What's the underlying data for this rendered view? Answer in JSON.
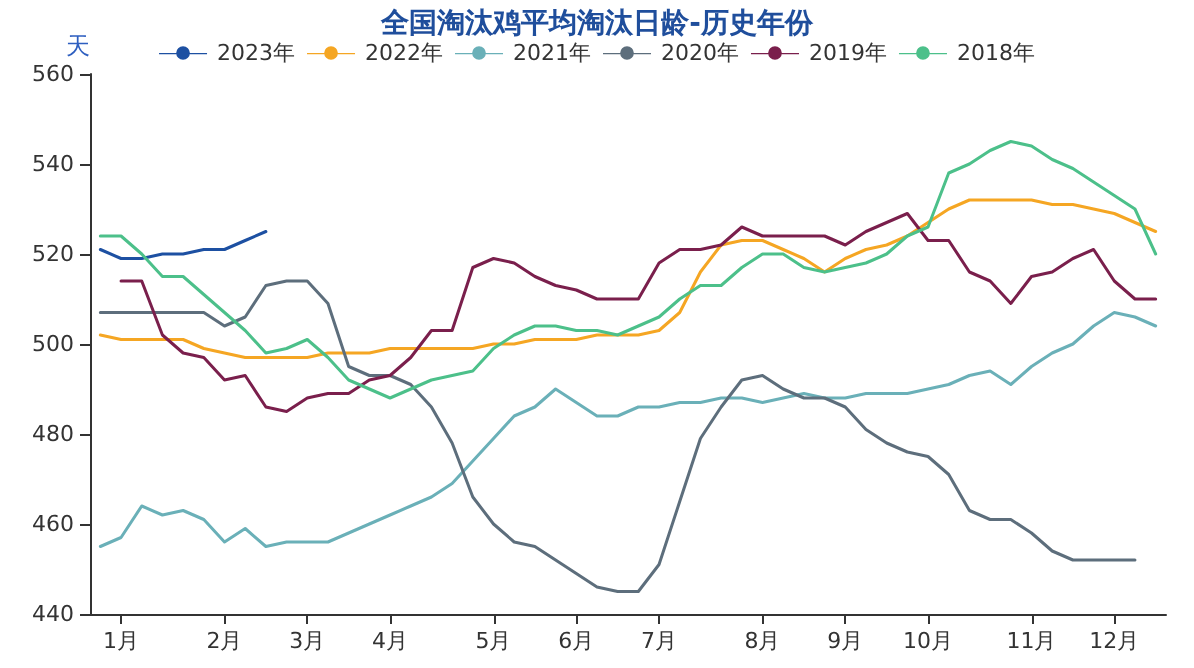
{
  "chart_data": {
    "type": "line",
    "title": "全国淘汰鸡平均淘汰日龄-历史年份",
    "ylabel": "天",
    "categories": [
      null,
      "1月",
      null,
      null,
      null,
      null,
      "2月",
      null,
      null,
      null,
      "3月",
      null,
      null,
      null,
      "4月",
      null,
      null,
      null,
      null,
      "5月",
      null,
      null,
      null,
      "6月",
      null,
      null,
      null,
      "7月",
      null,
      null,
      null,
      null,
      "8月",
      null,
      null,
      null,
      "9月",
      null,
      null,
      null,
      "10月",
      null,
      null,
      null,
      null,
      "11月",
      null,
      null,
      null,
      "12月",
      null,
      null
    ],
    "ylim": [
      440,
      560
    ],
    "yticks": [
      440,
      460,
      480,
      500,
      520,
      540,
      560
    ],
    "grid": false,
    "legend": "top",
    "marker": "none",
    "line_style": "solid",
    "series": [
      {
        "name": "2023年",
        "color": "#1d50a2",
        "values": [
          521,
          519,
          519,
          520,
          520,
          521,
          521,
          523,
          525,
          null,
          null,
          null,
          null,
          null,
          null,
          null,
          null,
          null,
          null,
          null,
          null,
          null,
          null,
          null,
          null,
          null,
          null,
          null,
          null,
          null,
          null,
          null,
          null,
          null,
          null,
          null,
          null,
          null,
          null,
          null,
          null,
          null,
          null,
          null,
          null,
          null,
          null,
          null,
          null,
          null,
          null,
          null
        ]
      },
      {
        "name": "2022年",
        "color": "#f5a623",
        "values": [
          502,
          501,
          501,
          501,
          501,
          499,
          498,
          497,
          497,
          497,
          497,
          498,
          498,
          498,
          499,
          499,
          499,
          499,
          499,
          500,
          500,
          501,
          501,
          501,
          502,
          502,
          502,
          503,
          507,
          516,
          522,
          523,
          523,
          521,
          519,
          516,
          519,
          521,
          522,
          524,
          527,
          530,
          532,
          532,
          532,
          532,
          531,
          531,
          530,
          529,
          527,
          525
        ]
      },
      {
        "name": "2021年",
        "color": "#6ab0b8",
        "values": [
          455,
          457,
          464,
          462,
          463,
          461,
          456,
          459,
          455,
          456,
          456,
          456,
          458,
          460,
          462,
          464,
          466,
          469,
          474,
          479,
          484,
          486,
          490,
          487,
          484,
          484,
          486,
          486,
          487,
          487,
          488,
          488,
          487,
          488,
          489,
          488,
          488,
          489,
          489,
          489,
          490,
          491,
          493,
          494,
          491,
          495,
          498,
          500,
          504,
          507,
          506,
          504
        ]
      },
      {
        "name": "2020年",
        "color": "#5d6e7c",
        "values": [
          507,
          507,
          507,
          507,
          507,
          507,
          504,
          506,
          513,
          514,
          514,
          509,
          495,
          493,
          493,
          491,
          486,
          478,
          466,
          460,
          456,
          455,
          452,
          449,
          446,
          445,
          445,
          451,
          465,
          479,
          486,
          492,
          493,
          490,
          488,
          488,
          486,
          481,
          478,
          476,
          475,
          471,
          463,
          461,
          461,
          458,
          454,
          452,
          452,
          452,
          452,
          null
        ]
      },
      {
        "name": "2019年",
        "color": "#7a1f4c",
        "values": [
          null,
          514,
          514,
          502,
          498,
          497,
          492,
          493,
          486,
          485,
          488,
          489,
          489,
          492,
          493,
          497,
          503,
          503,
          517,
          519,
          518,
          515,
          513,
          512,
          510,
          510,
          510,
          518,
          521,
          521,
          522,
          526,
          524,
          524,
          524,
          524,
          522,
          525,
          527,
          529,
          523,
          523,
          516,
          514,
          509,
          515,
          516,
          519,
          521,
          514,
          510,
          510
        ]
      },
      {
        "name": "2018年",
        "color": "#4cc08a",
        "values": [
          524,
          524,
          520,
          515,
          515,
          511,
          507,
          503,
          498,
          499,
          501,
          497,
          492,
          490,
          488,
          490,
          492,
          493,
          494,
          499,
          502,
          504,
          504,
          503,
          503,
          502,
          504,
          506,
          510,
          513,
          513,
          517,
          520,
          520,
          517,
          516,
          517,
          518,
          520,
          524,
          526,
          538,
          540,
          543,
          545,
          544,
          541,
          539,
          536,
          533,
          530,
          520
        ]
      }
    ]
  }
}
